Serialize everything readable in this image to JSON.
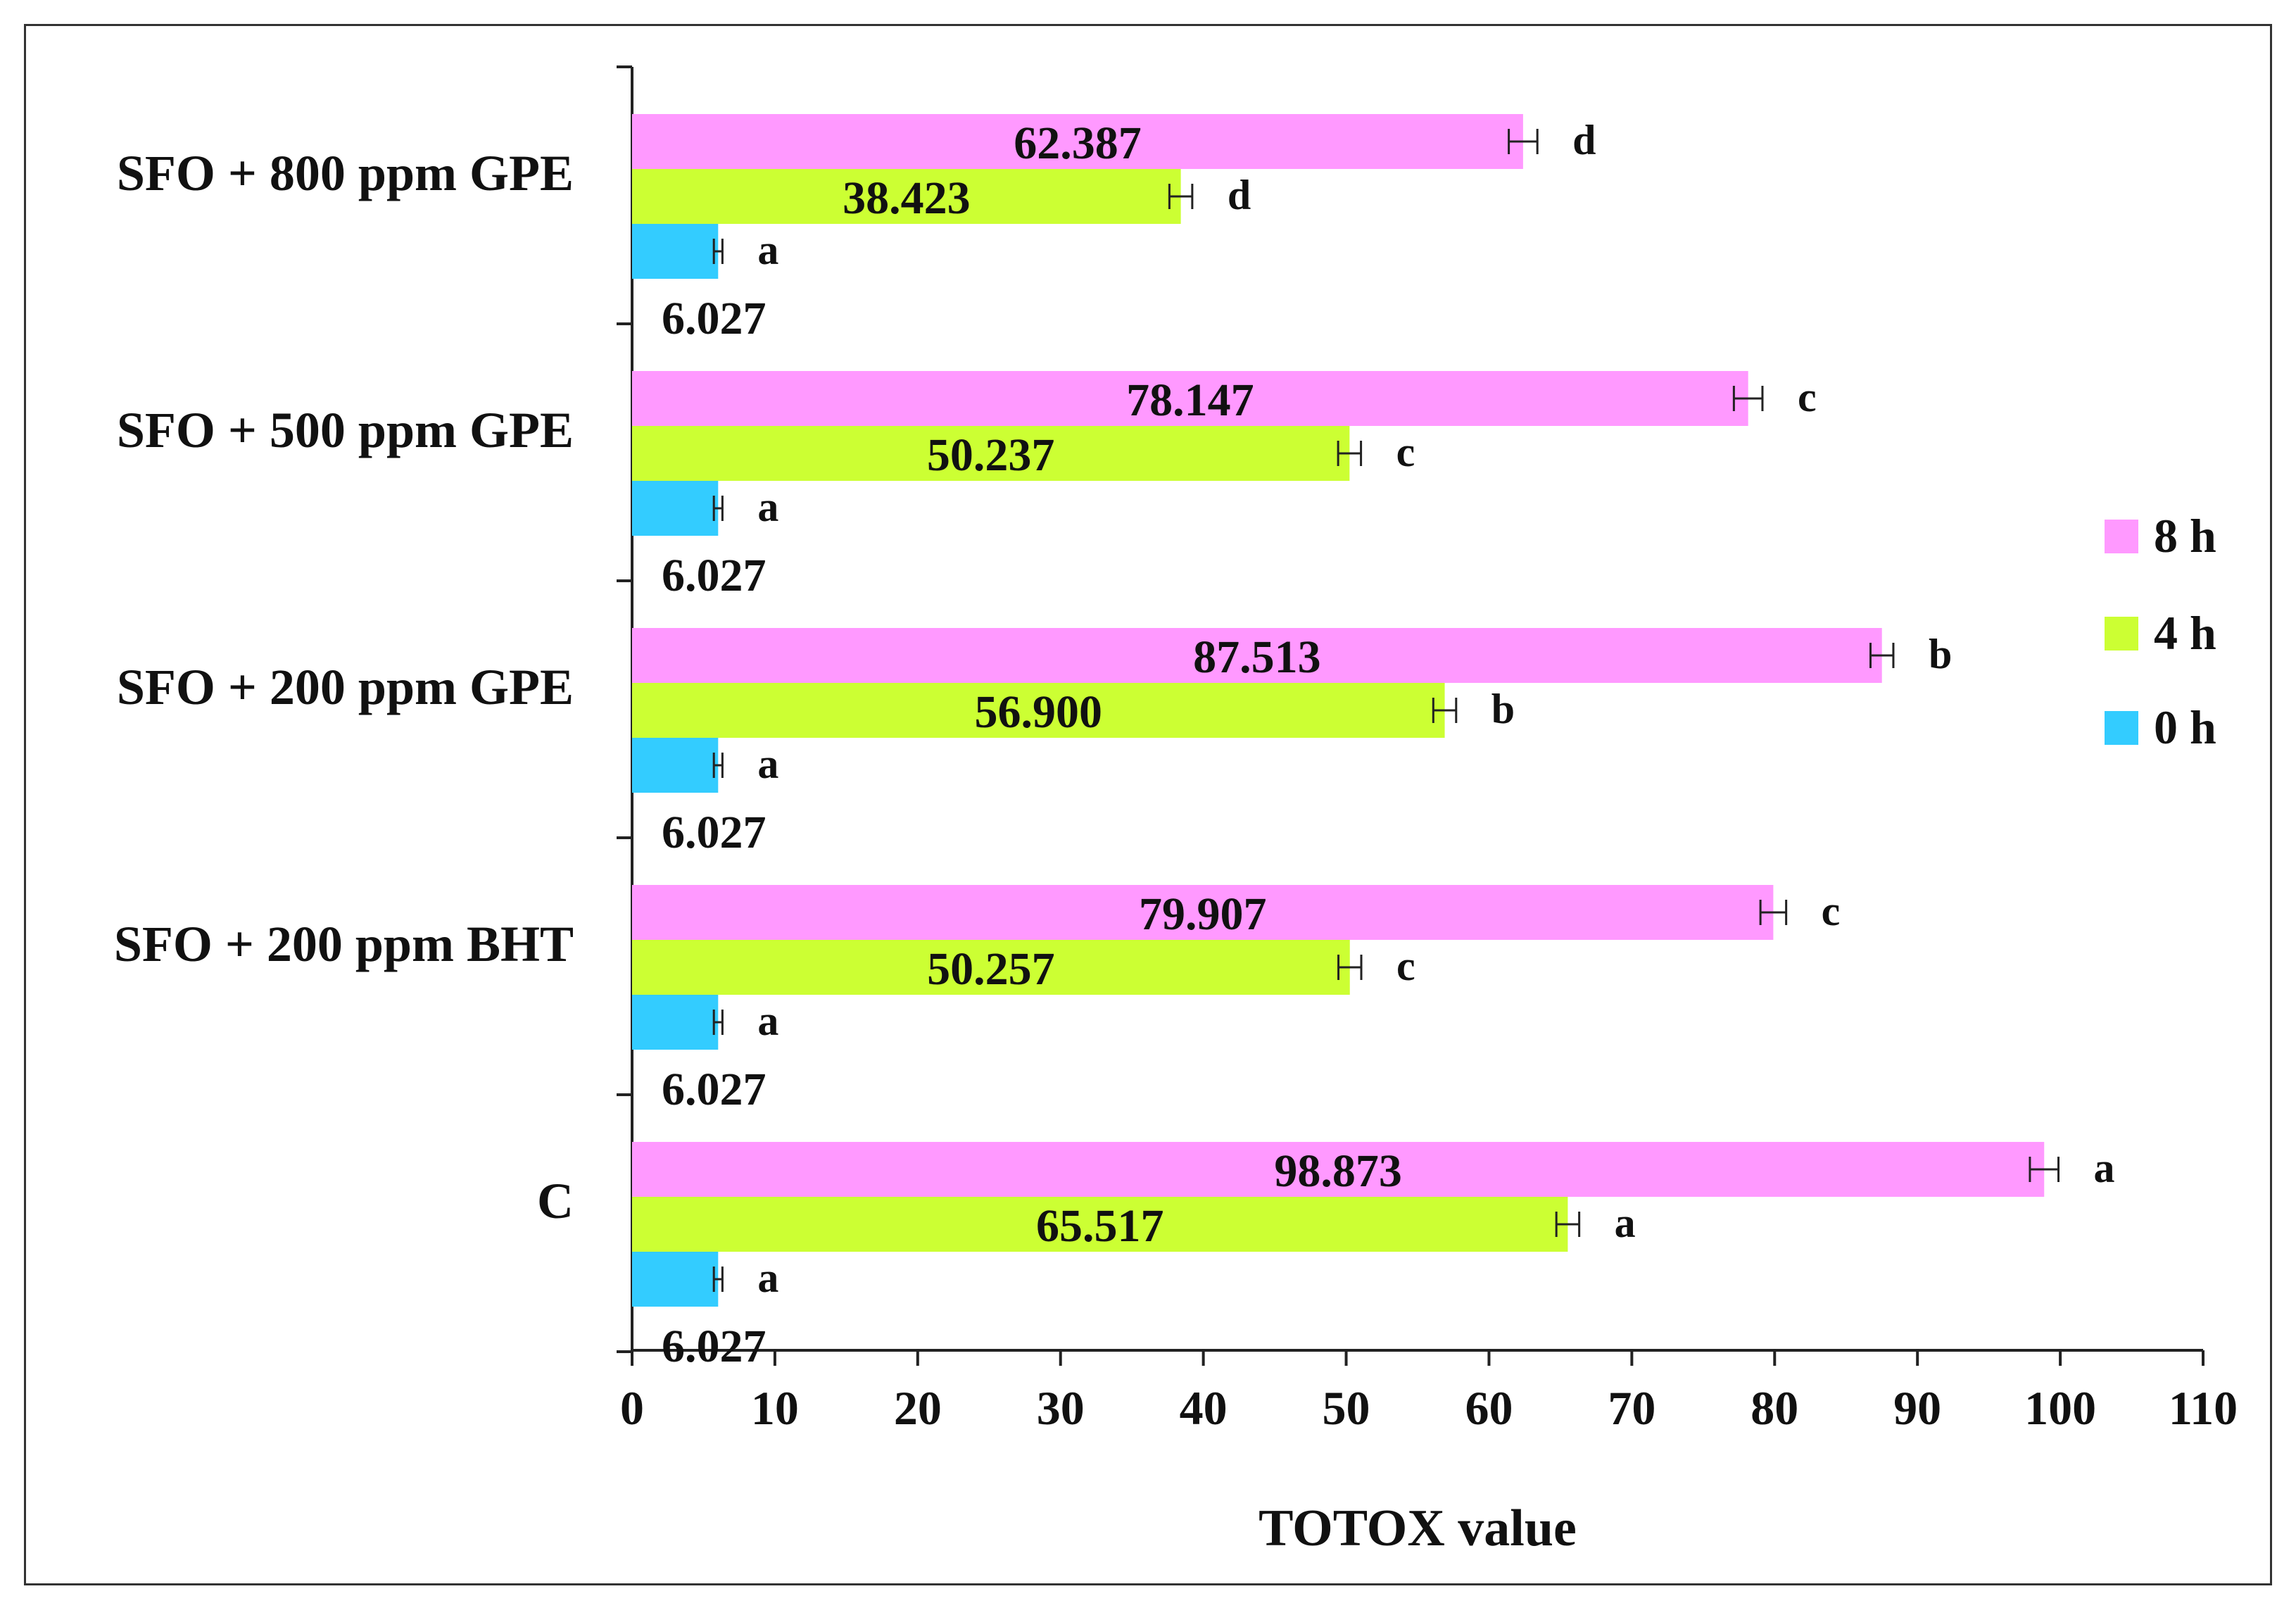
{
  "chart_data": {
    "type": "bar",
    "orientation": "horizontal",
    "title": "",
    "xlabel": "TOTOX value",
    "ylabel": "",
    "xlim": [
      0,
      110
    ],
    "x_ticks": [
      0,
      10,
      20,
      30,
      40,
      50,
      60,
      70,
      80,
      90,
      100,
      110
    ],
    "grid": false,
    "legend_position": "right",
    "categories": [
      "SFO + 800 ppm GPE",
      "SFO + 500 ppm GPE",
      "SFO + 200 ppm GPE",
      "SFO + 200 ppm BHT",
      "C"
    ],
    "series": [
      {
        "name": "8 h",
        "color": "#ff99ff",
        "values": [
          62.387,
          78.147,
          87.513,
          79.907,
          98.873
        ],
        "labels": [
          "62.387",
          "78.147",
          "87.513",
          "79.907",
          "98.873"
        ],
        "errors": [
          1.0,
          1.0,
          0.8,
          0.9,
          1.0
        ],
        "significance": [
          "d",
          "c",
          "b",
          "c",
          "a"
        ]
      },
      {
        "name": "4 h",
        "color": "#ccff33",
        "values": [
          38.423,
          50.237,
          56.9,
          50.257,
          65.517
        ],
        "labels": [
          "38.423",
          "50.237",
          "56.900",
          "50.257",
          "65.517"
        ],
        "errors": [
          0.8,
          0.8,
          0.8,
          0.8,
          0.8
        ],
        "significance": [
          "d",
          "c",
          "b",
          "c",
          "a"
        ]
      },
      {
        "name": "0 h",
        "color": "#33ccff",
        "values": [
          6.027,
          6.027,
          6.027,
          6.027,
          6.027
        ],
        "labels": [
          "6.027",
          "6.027",
          "6.027",
          "6.027",
          "6.027"
        ],
        "errors": [
          0.3,
          0.3,
          0.3,
          0.3,
          0.3
        ],
        "significance": [
          "a",
          "a",
          "a",
          "a",
          "a"
        ]
      }
    ],
    "legend_order": [
      "8 h",
      "4 h",
      "0 h"
    ]
  }
}
